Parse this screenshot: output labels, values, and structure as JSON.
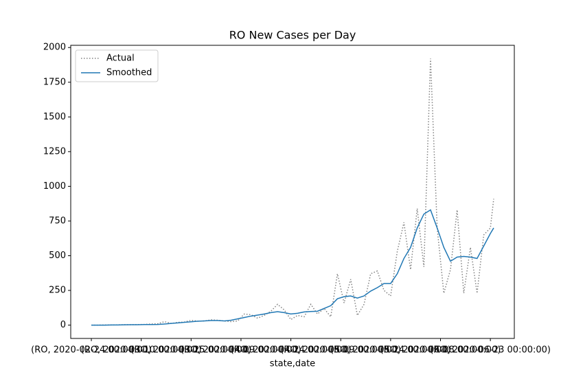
{
  "chart_data": {
    "type": "line",
    "title": "RO New Cases per Day",
    "x_label": "state,date",
    "x": [
      0,
      2,
      4,
      6,
      8,
      10,
      12,
      14,
      16,
      18,
      20,
      22,
      24,
      26,
      28,
      30,
      32,
      34,
      36,
      38,
      40,
      42,
      44,
      46,
      48,
      50,
      52,
      54,
      56,
      58,
      60,
      62,
      64,
      66,
      68,
      70,
      72,
      74,
      76,
      78,
      80,
      82,
      84,
      86,
      88,
      90,
      92,
      94,
      96,
      98,
      100,
      102,
      104,
      106,
      108,
      110,
      112,
      114,
      116,
      118,
      120,
      121
    ],
    "series": [
      {
        "name": "Actual",
        "color": "#808080",
        "dash": "dotted",
        "values": [
          0,
          0,
          1,
          1,
          2,
          3,
          3,
          4,
          5,
          8,
          10,
          25,
          12,
          20,
          22,
          35,
          28,
          30,
          38,
          35,
          30,
          25,
          30,
          80,
          75,
          50,
          70,
          100,
          150,
          110,
          40,
          70,
          60,
          150,
          80,
          120,
          60,
          370,
          160,
          330,
          70,
          150,
          370,
          390,
          250,
          210,
          530,
          740,
          400,
          840,
          420,
          1920,
          700,
          230,
          400,
          830,
          230,
          560,
          230,
          650,
          700,
          910
        ]
      },
      {
        "name": "Smoothed",
        "color": "#1f77b4",
        "dash": "solid",
        "values": [
          0,
          0,
          0,
          1,
          1,
          2,
          3,
          3,
          4,
          4,
          5,
          8,
          12,
          16,
          20,
          24,
          28,
          30,
          33,
          33,
          30,
          35,
          45,
          55,
          65,
          72,
          80,
          90,
          97,
          90,
          80,
          85,
          95,
          98,
          100,
          120,
          140,
          190,
          205,
          210,
          195,
          210,
          245,
          270,
          300,
          300,
          370,
          480,
          560,
          700,
          800,
          830,
          700,
          560,
          460,
          490,
          495,
          490,
          480,
          570,
          660,
          700
        ]
      }
    ],
    "xlim": [
      -6.2,
      127.2
    ],
    "xticks": [
      {
        "value": 0,
        "label": "(RO, 2020-02-24 00:00:00)"
      },
      {
        "value": 15,
        "label": "(RO, 2020-03-10 00:00:00)"
      },
      {
        "value": 30,
        "label": "(RO, 2020-03-25 00:00:00)"
      },
      {
        "value": 45,
        "label": "(RO, 2020-04-09 00:00:00)"
      },
      {
        "value": 60,
        "label": "(RO, 2020-04-24 00:00:00)"
      },
      {
        "value": 75,
        "label": "(RO, 2020-05-09 00:00:00)"
      },
      {
        "value": 90,
        "label": "(RO, 2020-05-24 00:00:00)"
      },
      {
        "value": 105,
        "label": "(RO, 2020-06-08 00:00:00)"
      },
      {
        "value": 120,
        "label": "(RO, 2020-06-23 00:00:00)"
      }
    ],
    "ylim": [
      -96,
      2016
    ],
    "yticks": [
      0,
      250,
      500,
      750,
      1000,
      1250,
      1500,
      1750,
      2000
    ],
    "legend": "upper-left",
    "grid": false
  }
}
